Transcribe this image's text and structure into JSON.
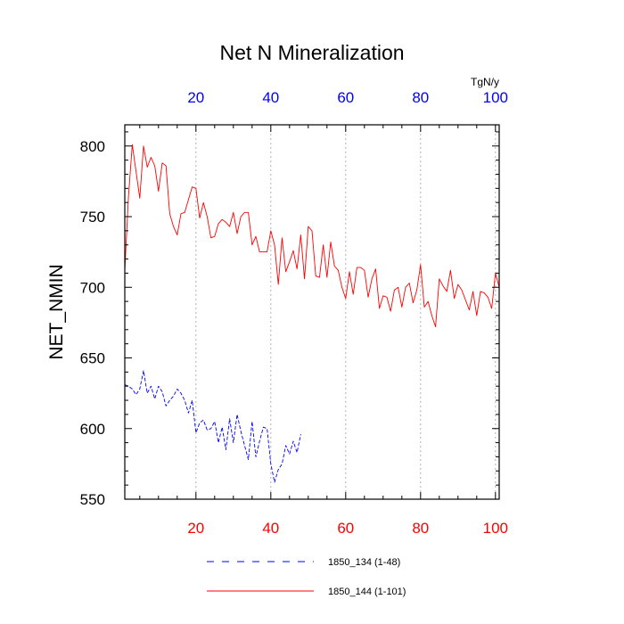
{
  "chart_data": {
    "type": "line",
    "title": "Net N Mineralization",
    "ylabel": "NET_NMIN",
    "xlabel": "",
    "top_axis_unit": "TgN/y",
    "xlim": [
      1,
      101
    ],
    "ylim": [
      550,
      815
    ],
    "yticks": [
      550,
      600,
      650,
      700,
      750,
      800
    ],
    "xticks": [
      20,
      40,
      60,
      80,
      100
    ],
    "grid": "vertical dotted at x ticks",
    "colors": {
      "bottom_ticks": "#ff0000",
      "top_ticks": "#0000ff"
    },
    "series": [
      {
        "name": "1850_144 (1-101)",
        "color": "#ff0000",
        "dash": "solid",
        "x_start": 1,
        "values": [
          712,
          765,
          801,
          782,
          763,
          800,
          785,
          792,
          786,
          768,
          788,
          786,
          752,
          743,
          737,
          752,
          753,
          762,
          771,
          770,
          749,
          760,
          750,
          735,
          736,
          745,
          748,
          746,
          743,
          753,
          738,
          750,
          753,
          753,
          730,
          736,
          725,
          725,
          725,
          740,
          730,
          702,
          735,
          711,
          718,
          726,
          713,
          737,
          706,
          743,
          740,
          708,
          707,
          730,
          707,
          732,
          715,
          712,
          700,
          692,
          711,
          695,
          714,
          714,
          712,
          693,
          706,
          713,
          685,
          694,
          693,
          683,
          698,
          700,
          686,
          700,
          703,
          689,
          698,
          716,
          686,
          690,
          680,
          672,
          706,
          701,
          697,
          712,
          692,
          702,
          698,
          691,
          684,
          697,
          680,
          697,
          696,
          693,
          685,
          710,
          700
        ]
      },
      {
        "name": "1850_134 (1-48)",
        "color": "#0000ff",
        "dash": "dashed",
        "x_start": 1,
        "values": [
          631,
          630,
          628,
          624,
          628,
          641,
          625,
          630,
          621,
          630,
          626,
          616,
          620,
          623,
          628,
          625,
          620,
          611,
          620,
          597,
          604,
          606,
          599,
          600,
          605,
          590,
          601,
          585,
          607,
          590,
          610,
          598,
          588,
          578,
          605,
          580,
          591,
          601,
          600,
          575,
          562,
          571,
          575,
          588,
          582,
          591,
          583,
          596
        ]
      }
    ],
    "legend": [
      {
        "label": "1850_134 (1-48)",
        "color": "#0000ff",
        "dash": "dashed"
      },
      {
        "label": "1850_144 (1-101)",
        "color": "#ff0000",
        "dash": "solid"
      }
    ]
  }
}
